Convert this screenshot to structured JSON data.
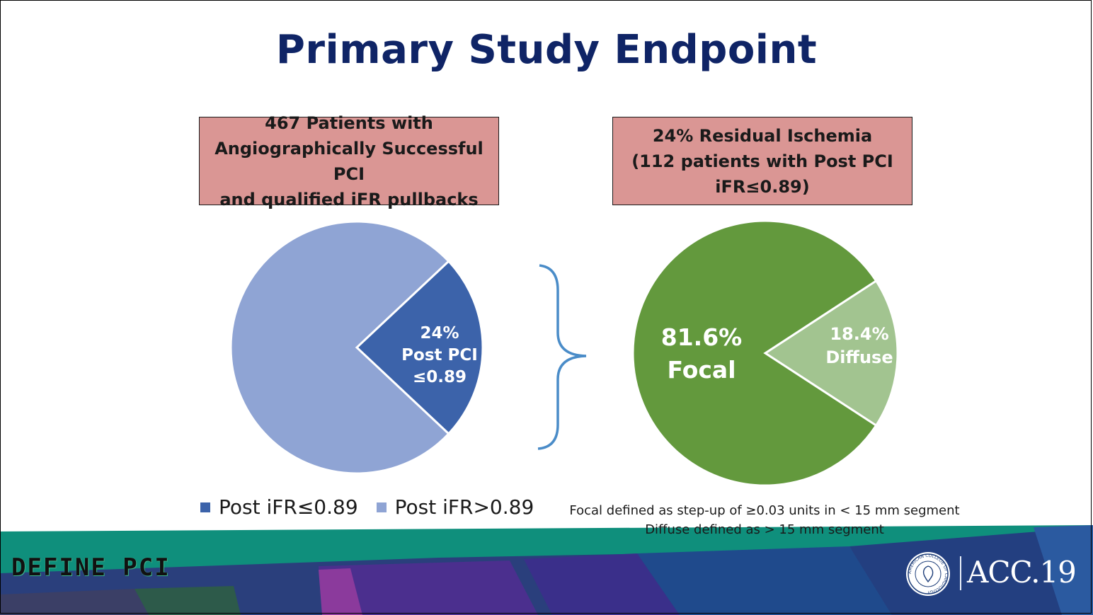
{
  "slide": {
    "title": "Primary Study Endpoint"
  },
  "left_box": {
    "lines": [
      "467 Patients with",
      "Angiographically Successful PCI",
      "and qualified iFR pullbacks"
    ]
  },
  "right_box": {
    "lines": [
      "24% Residual Ischemia",
      "(112 patients with Post PCI",
      "iFR≤0.89)"
    ]
  },
  "chart_data": [
    {
      "type": "pie",
      "slices": [
        {
          "name": "Post iFR≤0.89",
          "value": 24,
          "color": "#3c63aa",
          "label_lines": [
            "24%",
            "Post PCI",
            "≤0.89"
          ]
        },
        {
          "name": "Post iFR>0.89",
          "value": 76,
          "color": "#8fa4d4",
          "label_lines": []
        }
      ],
      "legend": {
        "placement": "bottom",
        "entries": [
          "Post iFR≤0.89",
          "Post iFR>0.89"
        ]
      }
    },
    {
      "type": "pie",
      "slices": [
        {
          "name": "Diffuse",
          "value": 18.4,
          "color": "#a2c490",
          "label_lines": [
            "18.4%",
            "Diffuse"
          ]
        },
        {
          "name": "Focal",
          "value": 81.6,
          "color": "#63993d",
          "label_lines": [
            "81.6%",
            "Focal"
          ]
        }
      ]
    }
  ],
  "footnote": {
    "line1": "Focal defined as step-up of ≥0.03 units in < 15 mm segment",
    "line2": "Diffuse defined as > 15 mm segment"
  },
  "branding": {
    "study_logo": "DEFINE PCI",
    "acc_seal_text": "AMERICAN COLLEGE OF CARDIOLOGY",
    "acc_text": "ACC.19",
    "banner_colors": [
      "#0f8f7c",
      "#2a3f7c",
      "#4b2f8e",
      "#1f4a8c"
    ]
  }
}
